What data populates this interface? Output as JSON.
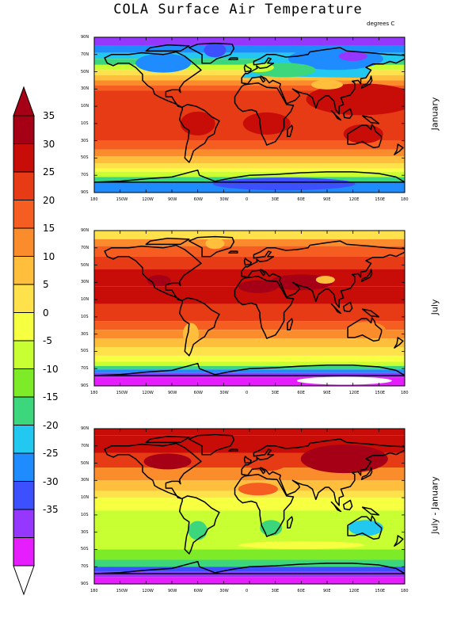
{
  "title": "COLA Surface Air Temperature",
  "units": "degrees C",
  "colorbar": {
    "labels": [
      "35",
      "30",
      "25",
      "20",
      "15",
      "10",
      "5",
      "0",
      "-5",
      "-10",
      "-15",
      "-20",
      "-25",
      "-30",
      "-35"
    ],
    "colors": [
      "#a50016",
      "#c80c08",
      "#e63b14",
      "#f55e20",
      "#fb8c2c",
      "#ffbe3c",
      "#ffe14b",
      "#f6ff40",
      "#c8ff32",
      "#7eeb28",
      "#3cd77c",
      "#23c8f0",
      "#1e8cff",
      "#3c50ff",
      "#9637ff",
      "#e61eff"
    ],
    "top_arrow_color": "#a50016",
    "bottom_arrow_color": "#ffffff"
  },
  "panels": [
    {
      "label": "January",
      "style": "jan"
    },
    {
      "label": "July",
      "style": "jul"
    },
    {
      "label": "July - January",
      "style": "diff"
    }
  ],
  "lat_ticks": [
    "90N",
    "70N",
    "50N",
    "30N",
    "10N",
    "10S",
    "30S",
    "50S",
    "70S",
    "90S"
  ],
  "lon_ticks": [
    "180",
    "150W",
    "120W",
    "90W",
    "60W",
    "30W",
    "0",
    "30E",
    "60E",
    "90E",
    "120E",
    "150E",
    "180"
  ]
}
